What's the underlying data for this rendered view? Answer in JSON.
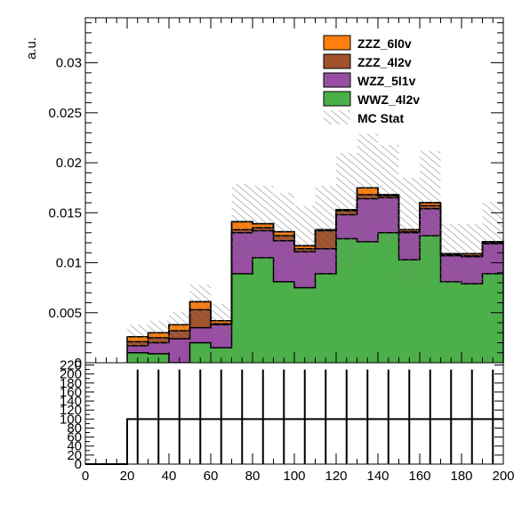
{
  "chart_data": [
    {
      "type": "bar",
      "stacked": true,
      "ylabel": "a.u.",
      "xlim": [
        0,
        200
      ],
      "ylim": [
        0,
        0.0345
      ],
      "yticks": [
        0,
        0.005,
        0.01,
        0.015,
        0.02,
        0.025,
        0.03
      ],
      "ytick_labels": [
        "0",
        "0.005",
        "0.01",
        "0.015",
        "0.02",
        "0.025",
        "0.03"
      ],
      "bin_edges": [
        20,
        30,
        40,
        50,
        60,
        70,
        80,
        90,
        100,
        110,
        120,
        130,
        140,
        150,
        160,
        170,
        180,
        190,
        200
      ],
      "series": [
        {
          "name": "WWZ_4l2v",
          "color": "#4daf4a",
          "values": [
            0.001,
            0.0009,
            0.0,
            0.002,
            0.0015,
            0.0089,
            0.0105,
            0.0081,
            0.0075,
            0.0089,
            0.0124,
            0.0121,
            0.013,
            0.0103,
            0.0127,
            0.0081,
            0.0079,
            0.0089
          ]
        },
        {
          "name": "WZZ_5l1v",
          "color": "#984ea3",
          "values": [
            0.0007,
            0.0011,
            0.0024,
            0.0015,
            0.0023,
            0.0041,
            0.0027,
            0.0041,
            0.0036,
            0.0025,
            0.0024,
            0.0043,
            0.0035,
            0.0027,
            0.0027,
            0.0026,
            0.0027,
            0.003
          ]
        },
        {
          "name": "ZZZ_4l2v",
          "color": "#a0522d",
          "values": [
            0.0004,
            0.0005,
            0.0008,
            0.0018,
            0.0001,
            0.0003,
            0.0003,
            0.0005,
            0.0003,
            0.0018,
            0.0004,
            0.0004,
            0.0002,
            0.0001,
            0.0003,
            0.0001,
            0.0001,
            0.0001
          ]
        },
        {
          "name": "ZZZ_6l0v",
          "color": "#ff7f0e",
          "values": [
            0.0005,
            0.0005,
            0.0006,
            0.0008,
            0.0003,
            0.0008,
            0.0004,
            0.0004,
            0.0003,
            0.0001,
            0.0001,
            0.0007,
            0.0001,
            0.0002,
            0.0003,
            0.0001,
            0.0002,
            0.0001
          ]
        }
      ],
      "uncertainty": {
        "name": "MC Stat",
        "style": "hatched",
        "color": "#888888",
        "rel_values": [
          0.0012,
          0.0012,
          0.0013,
          0.0017,
          0.0017,
          0.0038,
          0.0038,
          0.0039,
          0.004,
          0.0044,
          0.0057,
          0.0054,
          0.005,
          0.0052,
          0.0052,
          0.003,
          0.003,
          0.004
        ]
      },
      "legend_position": "top-right"
    },
    {
      "type": "bar",
      "xlabel": "",
      "xlim": [
        0,
        200
      ],
      "ylim": [
        0,
        225
      ],
      "xticks": [
        0,
        20,
        40,
        60,
        80,
        100,
        120,
        140,
        160,
        180,
        200
      ],
      "xtick_labels": [
        "0",
        "20",
        "40",
        "60",
        "80",
        "100",
        "120",
        "140",
        "160",
        "180",
        "200"
      ],
      "ytick_labels": [
        "0",
        "20",
        "40",
        "60",
        "80",
        "100",
        "120",
        "140",
        "160",
        "180",
        "200",
        "220"
      ],
      "bin_edges": [
        20,
        30,
        40,
        50,
        60,
        70,
        80,
        90,
        100,
        110,
        120,
        130,
        140,
        150,
        160,
        170,
        180,
        190,
        200
      ],
      "values": [
        100,
        100,
        100,
        100,
        100,
        100,
        100,
        100,
        100,
        100,
        100,
        100,
        100,
        100,
        100,
        100,
        100,
        100
      ],
      "error_high": [
        210,
        210,
        210,
        210,
        210,
        210,
        210,
        210,
        210,
        210,
        210,
        210,
        210,
        210,
        210,
        210,
        210,
        210
      ]
    }
  ]
}
